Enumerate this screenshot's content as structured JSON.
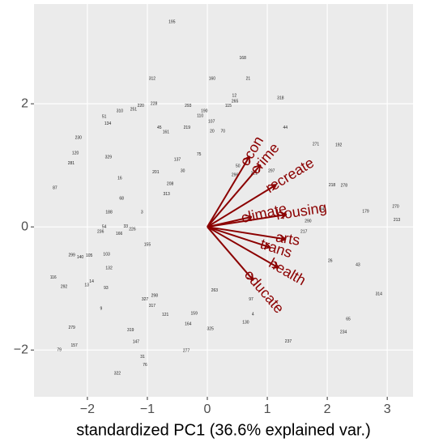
{
  "chart_data": {
    "type": "biplot",
    "x_label": "standardized PC1 (36.6% explained var.)",
    "xlim": [
      -2.89,
      3.43
    ],
    "ylim": [
      -2.76,
      3.62
    ],
    "xticks": [
      {
        "value": -2,
        "label": "−2"
      },
      {
        "value": -1,
        "label": "−1"
      },
      0,
      1,
      2,
      3
    ],
    "yticks": [
      {
        "value": -2,
        "label": "−2"
      },
      0,
      2
    ],
    "grid": true,
    "arrow_color": "#8b0000",
    "arrows": {
      "names": [
        "econ",
        "crime",
        "recreate",
        "climate",
        "housing",
        "arts",
        "trans",
        "health",
        "educate"
      ],
      "x": [
        0.7,
        0.88,
        1.14,
        0.73,
        1.31,
        1.3,
        1.04,
        1.18,
        0.76
      ],
      "y": [
        1.14,
        1.0,
        0.68,
        0.16,
        0.2,
        -0.2,
        -0.33,
        -0.66,
        -0.86
      ]
    },
    "points": {
      "labels": [
        "195",
        "168",
        "312",
        "160",
        "21",
        "12",
        "265",
        "318",
        "115",
        "220",
        "228",
        "251",
        "310",
        "293",
        "190",
        "110",
        "51",
        "134",
        "230",
        "45",
        "161",
        "219",
        "20",
        "70",
        "107",
        "44",
        "192",
        "271",
        "120",
        "329",
        "281",
        "87",
        "16",
        "68",
        "188",
        "3",
        "54",
        "236",
        "166",
        "33",
        "226",
        "299",
        "140",
        "105",
        "116",
        "292",
        "13",
        "14",
        "93",
        "9",
        "279",
        "79",
        "157",
        "319",
        "147",
        "31",
        "76",
        "322",
        "277",
        "325",
        "130",
        "4",
        "237",
        "234",
        "65",
        "314",
        "43",
        "26",
        "270",
        "213",
        "179",
        "84",
        "290",
        "217",
        "278",
        "218",
        "97",
        "263",
        "164",
        "159",
        "121",
        "298",
        "327",
        "317",
        "132",
        "103",
        "155",
        "75",
        "137",
        "201",
        "30",
        "208",
        "313",
        "297",
        "296",
        "50",
        "221"
      ],
      "x": [
        -0.59,
        0.59,
        -0.92,
        0.08,
        0.68,
        0.45,
        0.46,
        1.22,
        0.35,
        -1.11,
        -0.89,
        -1.23,
        -1.46,
        -0.32,
        -0.05,
        -0.12,
        -1.72,
        -1.66,
        -2.15,
        -0.8,
        -0.69,
        -0.34,
        0.08,
        0.26,
        0.07,
        1.3,
        2.19,
        1.81,
        -2.2,
        -1.65,
        -2.27,
        -2.54,
        -1.46,
        -1.43,
        -1.64,
        -1.09,
        -1.72,
        -1.78,
        -1.47,
        -1.36,
        -1.25,
        -2.26,
        -2.12,
        -1.97,
        -2.57,
        -2.39,
        -2.01,
        -1.93,
        -1.69,
        -1.77,
        -2.26,
        -2.47,
        -2.22,
        -1.28,
        -1.19,
        -1.08,
        -1.04,
        -1.5,
        -0.35,
        0.05,
        0.64,
        0.76,
        1.35,
        2.27,
        2.35,
        2.86,
        2.51,
        2.05,
        3.14,
        3.16,
        2.64,
        1.91,
        1.68,
        1.61,
        2.28,
        2.08,
        0.73,
        0.12,
        -0.32,
        -0.22,
        -0.7,
        -0.88,
        -1.04,
        -0.92,
        -1.64,
        -1.68,
        -1.0,
        -0.14,
        -0.5,
        -0.86,
        -0.41,
        -0.62,
        -0.68,
        1.07,
        0.46,
        0.51,
        0.78
      ],
      "y": [
        3.33,
        2.74,
        2.41,
        2.41,
        2.41,
        2.13,
        2.04,
        2.09,
        1.97,
        1.97,
        2.0,
        1.91,
        1.88,
        1.97,
        1.88,
        1.8,
        1.79,
        1.68,
        1.45,
        1.61,
        1.54,
        1.61,
        1.55,
        1.55,
        1.71,
        1.61,
        1.33,
        1.34,
        1.2,
        1.13,
        1.03,
        0.63,
        0.79,
        0.46,
        0.24,
        0.24,
        0.0,
        -0.08,
        -0.11,
        0.01,
        -0.04,
        -0.46,
        -0.49,
        -0.47,
        -0.82,
        -0.97,
        -0.95,
        -0.89,
        -0.99,
        -1.33,
        -1.64,
        -2.0,
        -1.93,
        -1.68,
        -1.87,
        -2.11,
        -2.24,
        -2.38,
        -2.01,
        -1.66,
        -1.55,
        -1.42,
        -1.86,
        -1.71,
        -1.5,
        -1.09,
        -0.62,
        -0.55,
        0.33,
        0.11,
        0.25,
        0.28,
        0.09,
        -0.08,
        0.67,
        0.68,
        -1.18,
        -1.03,
        -1.58,
        -1.41,
        -1.43,
        -1.12,
        -1.18,
        -1.28,
        -0.67,
        -0.45,
        -0.29,
        1.18,
        1.09,
        0.89,
        0.91,
        0.7,
        0.53,
        0.91,
        0.84,
        0.99,
        0.87
      ]
    }
  }
}
